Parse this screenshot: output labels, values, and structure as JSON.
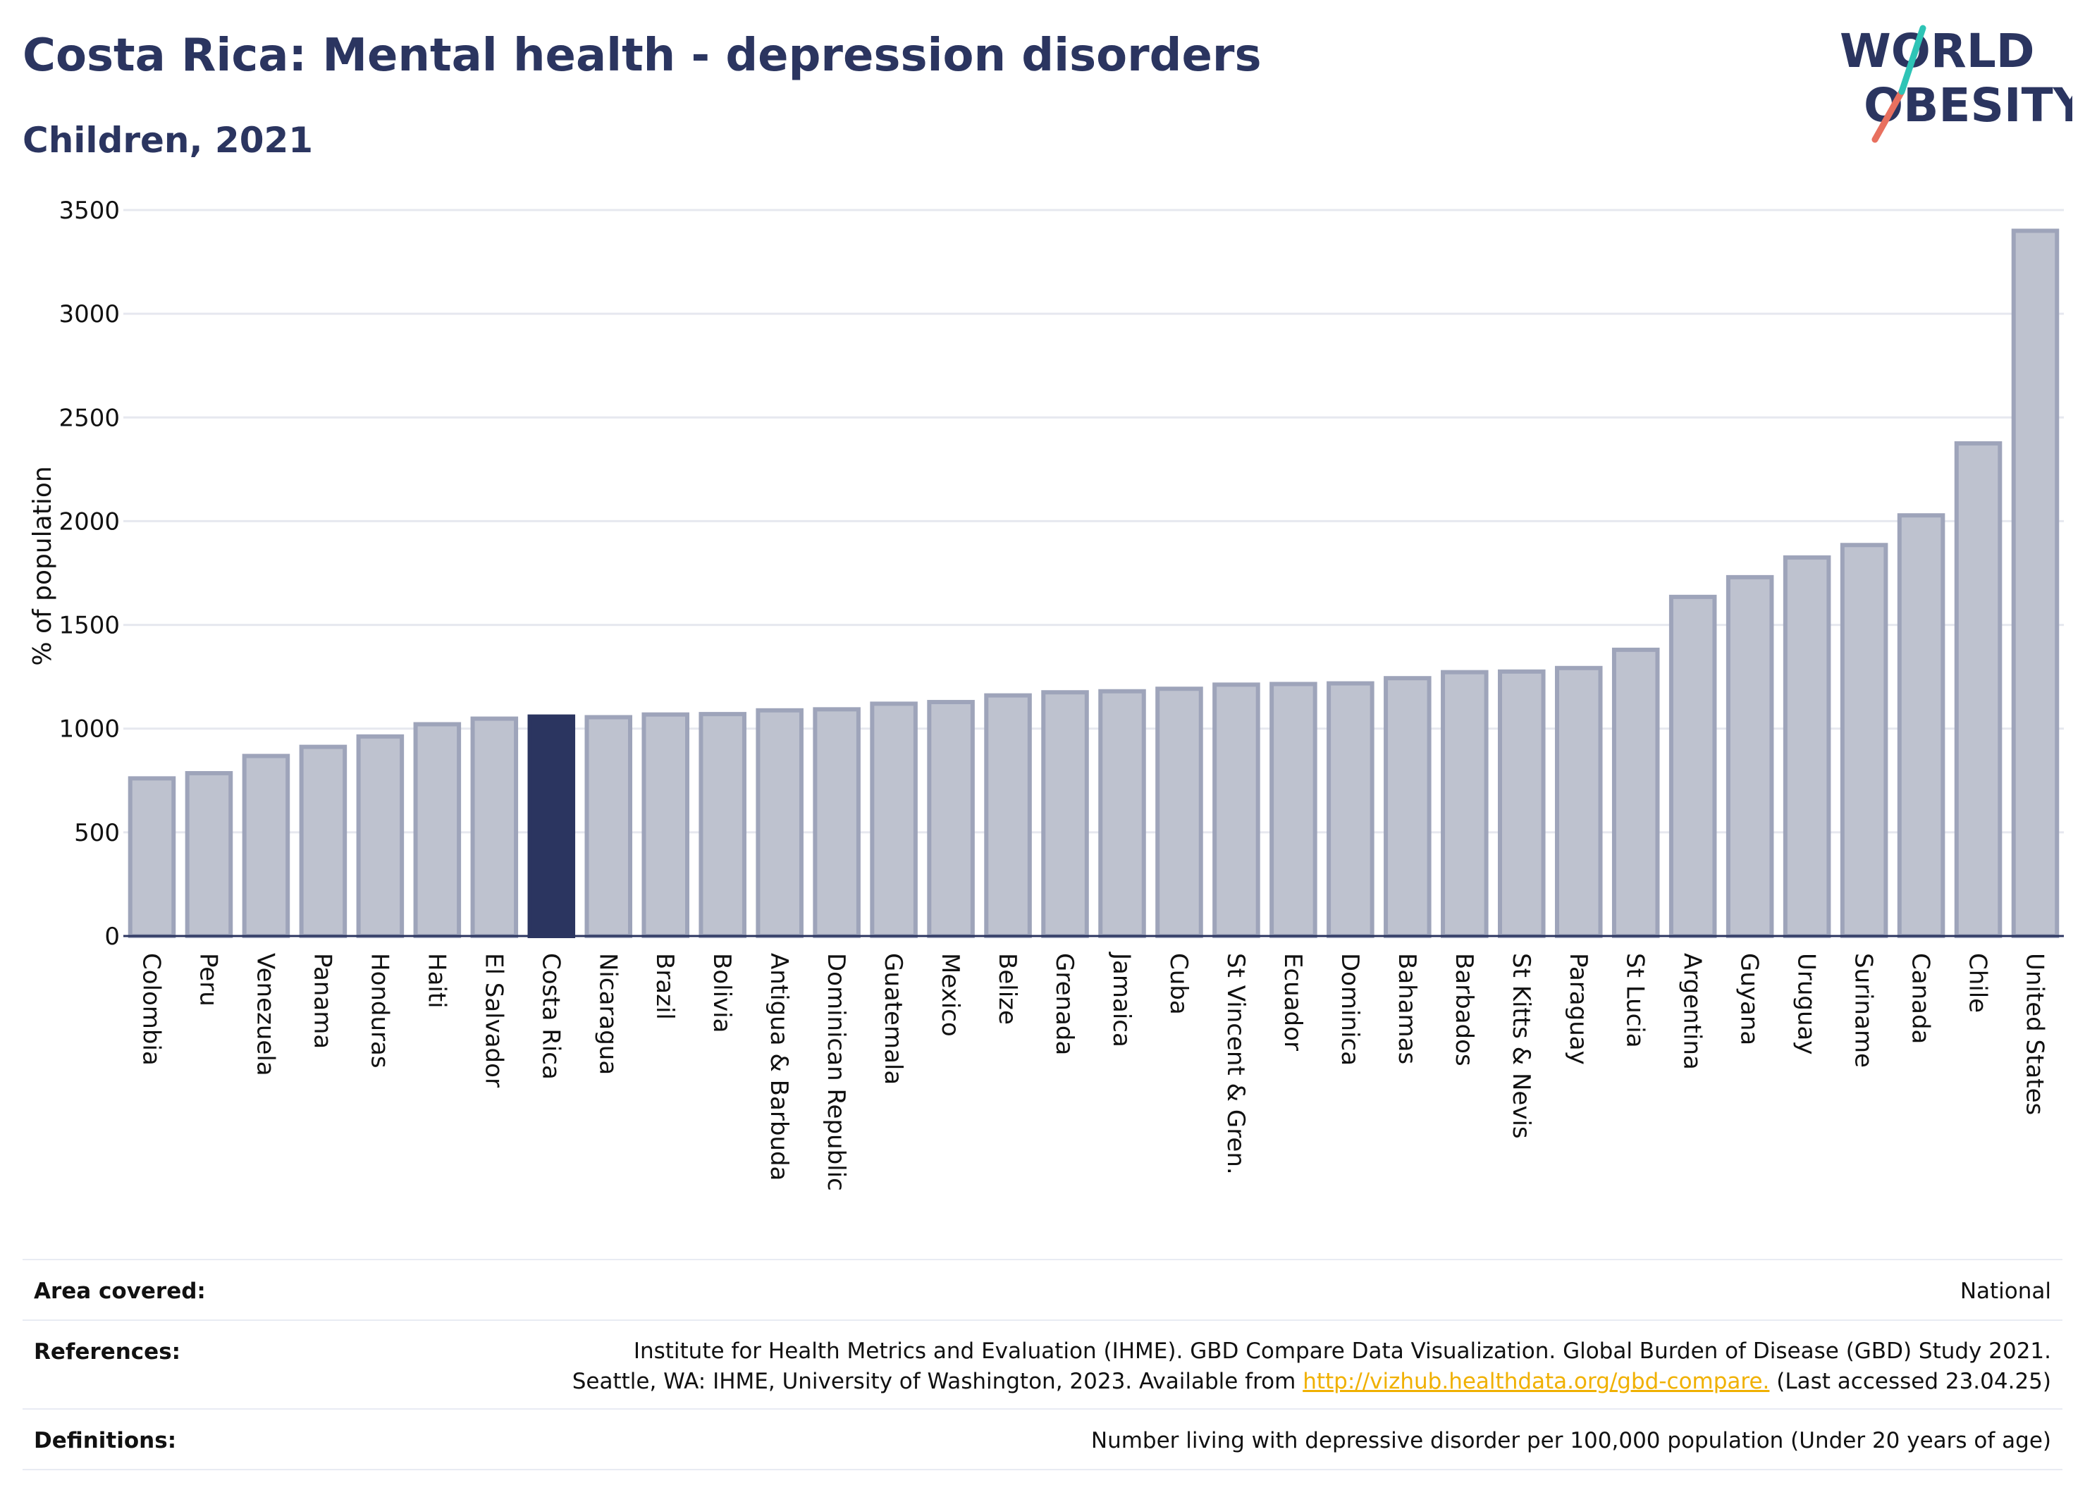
{
  "header": {
    "title": "Costa Rica: Mental health - depression disorders",
    "subtitle": "Children, 2021"
  },
  "logo": {
    "line1": "WORLD",
    "line2": "OBESITY"
  },
  "chart_data": {
    "type": "bar",
    "title": "Costa Rica: Mental health - depression disorders",
    "subtitle": "Children, 2021",
    "xlabel": "",
    "ylabel": "% of population",
    "ylim": [
      0,
      3500
    ],
    "yticks": [
      0,
      500,
      1000,
      1500,
      2000,
      2500,
      3000,
      3500
    ],
    "grid": true,
    "highlight": "Costa Rica",
    "colors": {
      "bar": "#bec2cf",
      "bar_edge": "#9ea4ba",
      "highlight": "#2b3560",
      "grid": "#e6e8ef"
    },
    "categories": [
      "Colombia",
      "Peru",
      "Venezuela",
      "Panama",
      "Honduras",
      "Haiti",
      "El Salvador",
      "Costa Rica",
      "Nicaragua",
      "Brazil",
      "Bolivia",
      "Antigua & Barbuda",
      "Dominican Republic",
      "Guatemala",
      "Mexico",
      "Belize",
      "Grenada",
      "Jamaica",
      "Cuba",
      "St Vincent & Gren.",
      "Ecuador",
      "Dominica",
      "Bahamas",
      "Barbados",
      "St Kitts & Nevis",
      "Paraguay",
      "St Lucia",
      "Argentina",
      "Guyana",
      "Uruguay",
      "Suriname",
      "Canada",
      "Chile",
      "United States"
    ],
    "values": [
      760,
      785,
      868,
      912,
      962,
      1021,
      1048,
      1058,
      1055,
      1068,
      1070,
      1088,
      1093,
      1120,
      1128,
      1160,
      1175,
      1180,
      1192,
      1212,
      1215,
      1218,
      1243,
      1272,
      1275,
      1292,
      1380,
      1635,
      1730,
      1825,
      1885,
      2028,
      2375,
      3400
    ]
  },
  "footer": {
    "area_label": "Area covered:",
    "area_value": "National",
    "references_label": "References:",
    "references_line1": "Institute for Health Metrics and Evaluation (IHME). GBD Compare Data Visualization. Global Burden of Disease (GBD) Study 2021.",
    "references_line2_pre": "Seattle, WA: IHME, University of Washington, 2023. Available from ",
    "references_link": "http://vizhub.healthdata.org/gbd-compare.",
    "references_line2_post": " (Last accessed 23.04.25)",
    "definitions_label": "Definitions:",
    "definitions_value": "Number living with depressive disorder per 100,000 population (Under 20 years of age)"
  }
}
